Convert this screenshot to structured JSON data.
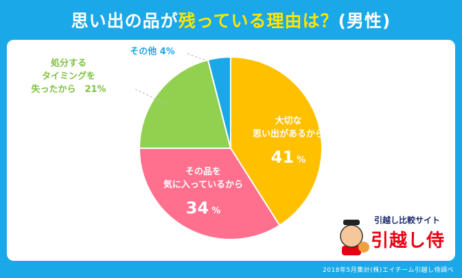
{
  "title": {
    "part1": "思い出の品が",
    "part2": "残っている理由は？",
    "part3": "(男性)"
  },
  "footer": "2018年5月集計(株)エイチーム引越し侍調べ",
  "logo": {
    "tagline": "引越し比較サイト",
    "brand": "引越し侍"
  },
  "colors": {
    "background": "#1aa8e8",
    "title_highlight": "#ffe600"
  },
  "chart_data": {
    "type": "pie",
    "title": "思い出の品が残っている理由は？(男性)",
    "slices": [
      {
        "lines": [
          "大切な",
          "思い出があるから"
        ],
        "value": 41,
        "value_text": "41",
        "unit": "%",
        "color": "#ffc000"
      },
      {
        "lines": [
          "その品を",
          "気に入っているから"
        ],
        "value": 34,
        "value_text": "34",
        "unit": "%",
        "color": "#ff6f8e"
      },
      {
        "lines": [
          "処分する",
          "タイミングを",
          "失ったから　21%"
        ],
        "value": 21,
        "color": "#92d050"
      },
      {
        "lines": [
          "その他 4%"
        ],
        "value": 4,
        "color": "#1aa8e8"
      }
    ]
  }
}
